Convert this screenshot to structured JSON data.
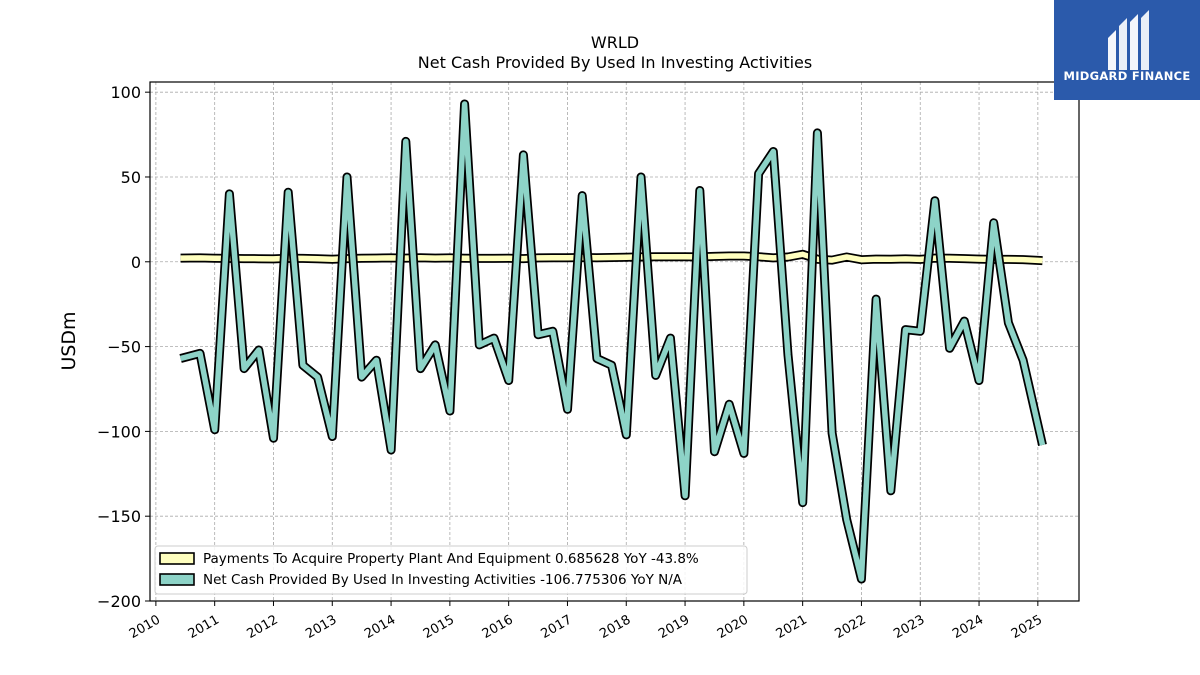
{
  "chart_data": {
    "type": "line",
    "title": "WRLD",
    "subtitle": "Net Cash Provided By Used In Investing Activities",
    "ylabel": "USDm",
    "xlabel": "",
    "xlim": [
      2009.9,
      2025.7
    ],
    "ylim": [
      -200,
      106
    ],
    "yticks": [
      100,
      50,
      0,
      -50,
      -100,
      -150,
      -200
    ],
    "ytick_labels": [
      "100",
      "50",
      "0",
      "−50",
      "−100",
      "−150",
      "−200"
    ],
    "xticks": [
      2010,
      2011,
      2012,
      2013,
      2014,
      2015,
      2016,
      2017,
      2018,
      2019,
      2020,
      2021,
      2022,
      2023,
      2024,
      2025
    ],
    "xtick_labels": [
      "2010",
      "2011",
      "2012",
      "2013",
      "2014",
      "2015",
      "2016",
      "2017",
      "2018",
      "2019",
      "2020",
      "2021",
      "2022",
      "2023",
      "2024",
      "2025"
    ],
    "grid": true,
    "legend_position": "lower-left",
    "series": [
      {
        "name": "Payments To Acquire Property Plant And Equipment  0.685628 YoY -43.8%",
        "color": "#ffffbf",
        "x": [
          2010.42,
          2010.75,
          2011.0,
          2011.25,
          2011.5,
          2011.75,
          2012.0,
          2012.25,
          2012.5,
          2012.75,
          2013.0,
          2013.25,
          2013.5,
          2013.75,
          2014.0,
          2014.25,
          2014.5,
          2014.75,
          2015.0,
          2015.25,
          2015.5,
          2015.75,
          2016.0,
          2016.25,
          2016.5,
          2016.75,
          2017.0,
          2017.25,
          2017.5,
          2017.75,
          2018.0,
          2018.25,
          2018.5,
          2018.75,
          2019.0,
          2019.25,
          2019.5,
          2019.75,
          2020.0,
          2020.25,
          2020.5,
          2020.75,
          2021.0,
          2021.25,
          2021.5,
          2021.75,
          2022.0,
          2022.25,
          2022.5,
          2022.75,
          2023.0,
          2023.25,
          2023.5,
          2023.75,
          2024.0,
          2024.25,
          2024.5,
          2024.75,
          2025.08
        ],
        "values": [
          2.2,
          2.3,
          2.1,
          2.0,
          1.9,
          1.8,
          1.7,
          2.1,
          2.0,
          1.8,
          1.5,
          1.9,
          2.1,
          2.2,
          2.3,
          2.2,
          2.4,
          2.2,
          2.3,
          2.1,
          2.0,
          2.0,
          2.1,
          1.9,
          2.3,
          2.4,
          2.4,
          2.5,
          2.4,
          2.5,
          2.7,
          2.9,
          3.0,
          3.0,
          3.0,
          2.9,
          3.2,
          3.4,
          3.4,
          3.0,
          2.3,
          2.8,
          4.4,
          1.5,
          1.0,
          2.8,
          1.2,
          1.6,
          1.5,
          1.7,
          1.4,
          2.2,
          2.1,
          1.9,
          1.6,
          1.4,
          1.4,
          1.3,
          0.69
        ]
      },
      {
        "name": "Net Cash Provided By Used In Investing Activities  -106.775306 YoY N/A",
        "color": "#8dd3c7",
        "x": [
          2010.42,
          2010.75,
          2011.0,
          2011.25,
          2011.5,
          2011.75,
          2012.0,
          2012.25,
          2012.5,
          2012.75,
          2013.0,
          2013.25,
          2013.5,
          2013.75,
          2014.0,
          2014.25,
          2014.5,
          2014.75,
          2015.0,
          2015.25,
          2015.5,
          2015.75,
          2016.0,
          2016.25,
          2016.5,
          2016.75,
          2017.0,
          2017.25,
          2017.5,
          2017.75,
          2018.0,
          2018.25,
          2018.5,
          2018.75,
          2019.0,
          2019.25,
          2019.5,
          2019.75,
          2020.0,
          2020.25,
          2020.5,
          2020.75,
          2021.0,
          2021.25,
          2021.5,
          2021.75,
          2022.0,
          2022.25,
          2022.5,
          2022.75,
          2023.0,
          2023.25,
          2023.5,
          2023.75,
          2024.0,
          2024.25,
          2024.5,
          2024.75,
          2025.08
        ],
        "values": [
          -57,
          -54,
          -99,
          40,
          -63,
          -52,
          -104,
          41,
          -61,
          -68,
          -103,
          50,
          -68,
          -58,
          -111,
          71,
          -63,
          -49,
          -88,
          93,
          -49,
          -45,
          -70,
          63,
          -43,
          -41,
          -87,
          39,
          -57,
          -61,
          -102,
          50,
          -67,
          -45,
          -138,
          42,
          -112,
          -84,
          -113,
          52,
          65,
          -55,
          -142,
          76,
          -101,
          -152,
          -187,
          -22,
          -135,
          -40,
          -41,
          36,
          -51,
          -35,
          -70,
          23,
          -36,
          -58,
          -108
        ]
      }
    ]
  },
  "brand": {
    "name": "MIDGARD FINANCE",
    "background_color": "#2b5aab"
  }
}
